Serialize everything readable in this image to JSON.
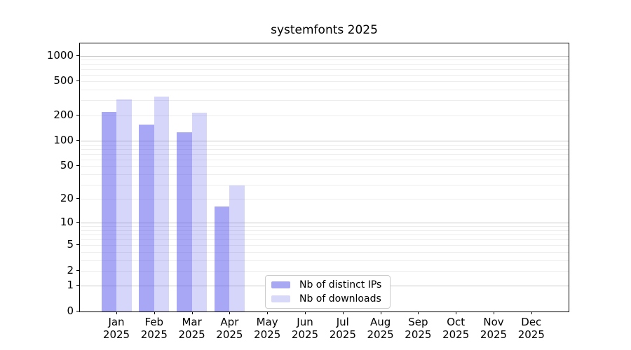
{
  "title": "systemfonts 2025",
  "chart_data": {
    "type": "bar",
    "title": "systemfonts 2025",
    "x_months": [
      "Jan",
      "Feb",
      "Mar",
      "Apr",
      "May",
      "Jun",
      "Jul",
      "Aug",
      "Sep",
      "Oct",
      "Nov",
      "Dec"
    ],
    "x_year": "2025",
    "categories": [
      "Jan 2025",
      "Feb 2025",
      "Mar 2025",
      "Apr 2025",
      "May 2025",
      "Jun 2025",
      "Jul 2025",
      "Aug 2025",
      "Sep 2025",
      "Oct 2025",
      "Nov 2025",
      "Dec 2025"
    ],
    "series": [
      {
        "name": "Nb of distinct IPs",
        "values": [
          220,
          155,
          125,
          16,
          null,
          null,
          null,
          null,
          null,
          null,
          null,
          null
        ],
        "fill": "rgba(80,80,238,0.50)",
        "legend_color": "#a8a8f2"
      },
      {
        "name": "Nb of downloads",
        "values": [
          305,
          330,
          215,
          29,
          null,
          null,
          null,
          null,
          null,
          null,
          null,
          null
        ],
        "fill": "rgba(80,80,238,0.235)",
        "legend_color": "#d8d8f9"
      }
    ],
    "yscale": "log10(1+x)",
    "ylim": [
      0,
      1400
    ],
    "yticks": [
      0,
      1,
      2,
      5,
      10,
      20,
      50,
      100,
      200,
      500,
      1000
    ],
    "grid": {
      "orientation": "horizontal",
      "major_at": [
        1,
        10,
        100,
        1000
      ],
      "minor_decades": [
        1,
        10,
        100
      ],
      "minor_multipliers": [
        2,
        3,
        4,
        5,
        6,
        7,
        8,
        9
      ],
      "major_color": "#c8c8c8",
      "minor_color": "#ededed"
    },
    "legend": {
      "position": "inside-bottom-left-of-center",
      "items": [
        "Nb of distinct IPs",
        "Nb of downloads"
      ]
    }
  }
}
